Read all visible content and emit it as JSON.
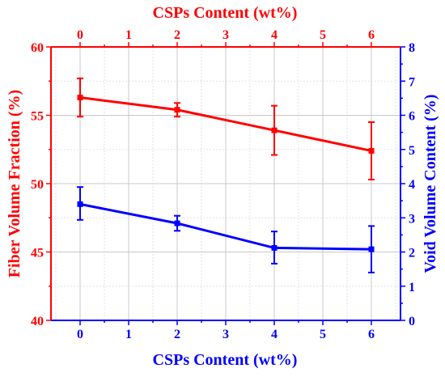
{
  "chart_data": {
    "type": "line",
    "title": "",
    "xlabel_bottom": "CSPs Content (wt%)",
    "xlabel_top": "CSPs Content (wt%)",
    "ylabel_left": "Fiber Volume Fraction (%)",
    "ylabel_right": "Void Volume Content (%)",
    "xlim": [
      -0.6,
      6.6
    ],
    "xticks": [
      "0",
      "1",
      "2",
      "3",
      "4",
      "5",
      "6"
    ],
    "ylim_left": [
      40,
      60
    ],
    "yticks_left": [
      "40",
      "45",
      "50",
      "55",
      "60"
    ],
    "ylim_right": [
      0,
      8
    ],
    "yticks_right": [
      "0",
      "1",
      "2",
      "3",
      "4",
      "5",
      "6",
      "7",
      "8"
    ],
    "grid": true,
    "left_axis_color": "#ff0000",
    "right_axis_color": "#0000ff",
    "series": [
      {
        "axis": "left",
        "color": "#ff0000",
        "x": [
          0,
          2,
          4,
          6
        ],
        "y": [
          56.3,
          55.4,
          53.9,
          52.4
        ],
        "err_low": [
          54.9,
          54.9,
          52.1,
          50.3
        ],
        "err_high": [
          57.7,
          55.9,
          55.7,
          54.5
        ]
      },
      {
        "axis": "right",
        "color": "#0000ff",
        "x": [
          0,
          2,
          4,
          6
        ],
        "y": [
          3.4,
          2.84,
          2.12,
          2.08
        ],
        "err_low": [
          2.94,
          2.62,
          1.66,
          1.4
        ],
        "err_high": [
          3.9,
          3.06,
          2.6,
          2.76
        ]
      }
    ]
  }
}
